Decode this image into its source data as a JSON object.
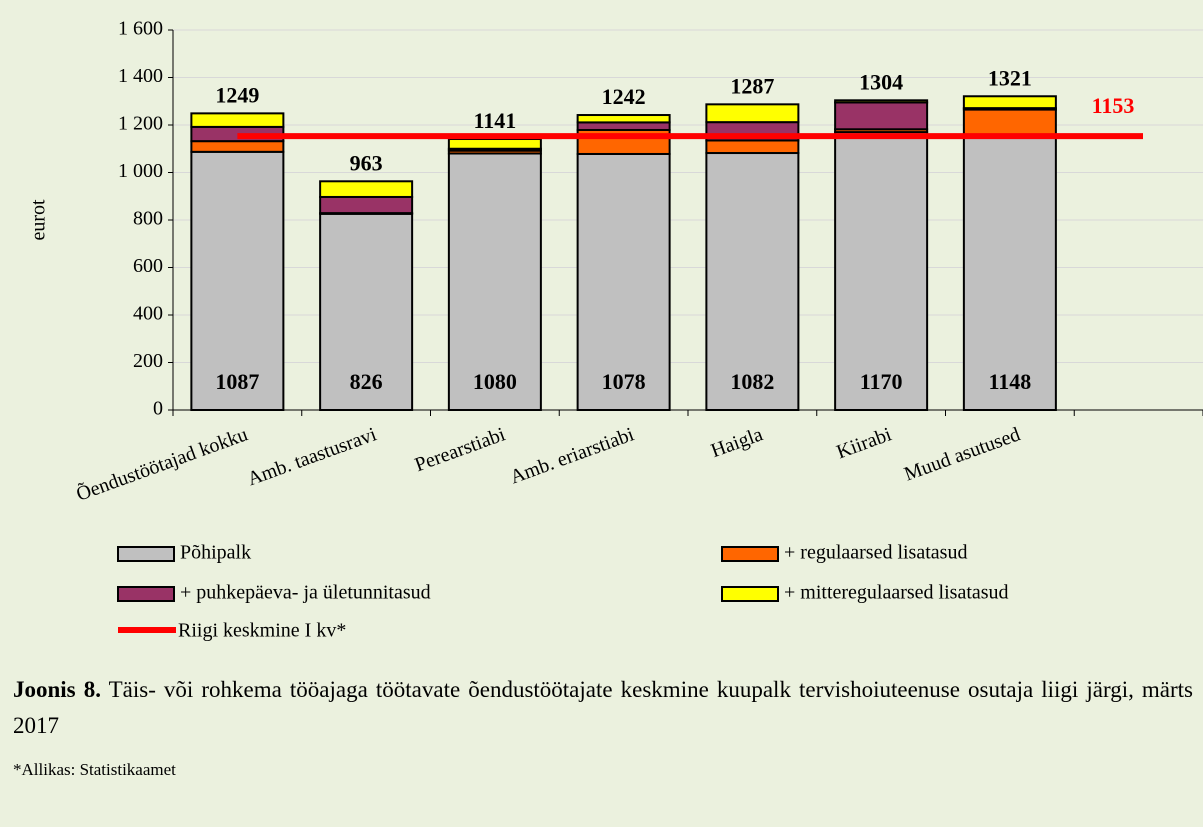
{
  "chart_data": {
    "type": "stacked_bar",
    "categories": [
      "Õendustöötajad kokku",
      "Amb. taastusravi",
      "Perearstiabi",
      "Amb. eriarstiabi",
      "Haigla",
      "Kiirabi",
      "Muud asutused",
      null
    ],
    "series": [
      {
        "name": "Põhipalk",
        "color": "#c0c0c0",
        "values": [
          1087,
          826,
          1080,
          1078,
          1082,
          1170,
          1148,
          null
        ]
      },
      {
        "name": "+ regulaarsed lisatasud",
        "color": "#ff6600",
        "values": [
          45,
          3,
          12,
          101,
          53,
          12,
          117,
          null
        ]
      },
      {
        "name": "+ puhkepäeva- ja ületunnitasud",
        "color": "#993366",
        "values": [
          60,
          68,
          8,
          32,
          77,
          113,
          6,
          null
        ]
      },
      {
        "name": "+ mitteregulaarsed lisatasud",
        "color": "#ffff00",
        "values": [
          57,
          66,
          41,
          31,
          75,
          9,
          50,
          null
        ]
      }
    ],
    "totals": [
      1249,
      963,
      1141,
      1242,
      1287,
      1304,
      1321,
      null
    ],
    "reference_line": {
      "name": "Riigi keskmine I kv*",
      "value": 1153,
      "color": "#ff0000"
    },
    "ylabel": "eurot",
    "ylim": [
      0,
      1600
    ],
    "yticks": [
      0,
      200,
      400,
      600,
      800,
      {
        "value": 1000,
        "label": "1 000"
      },
      {
        "value": 1200,
        "label": "1 200"
      },
      {
        "value": 1400,
        "label": "1 400"
      },
      {
        "value": 1600,
        "label": "1 600"
      }
    ],
    "grid": true
  },
  "caption": {
    "label": "Joonis 8.",
    "text": "Täis- või rohkema tööajaga töötavate õendustöötajate keskmine kuupalk tervishoiuteenuse osutaja liigi järgi, märts 2017"
  },
  "source": "*Allikas: Statistikaamet"
}
